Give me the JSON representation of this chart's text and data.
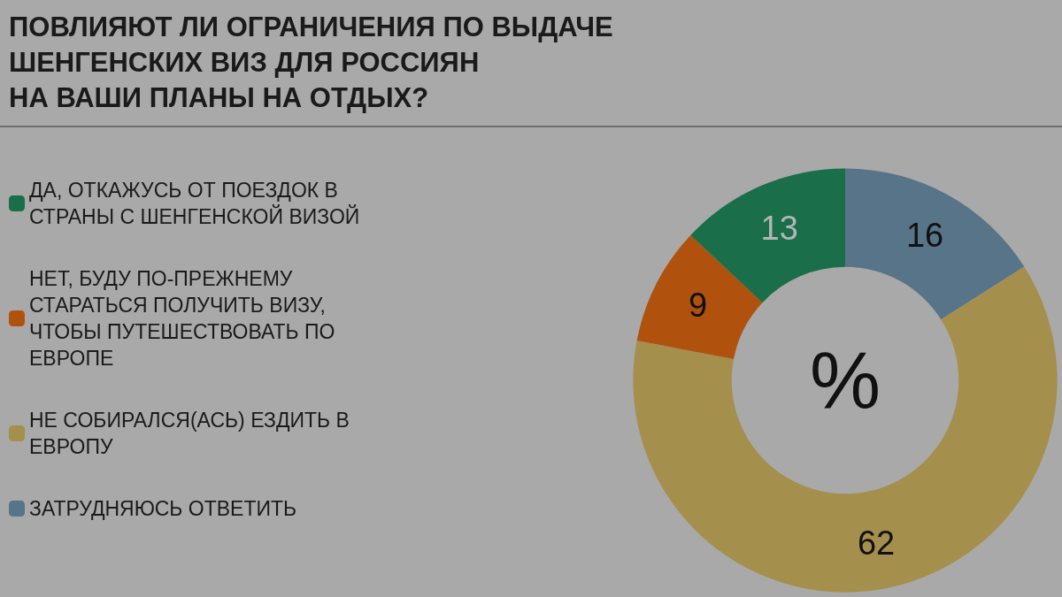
{
  "chart_data": {
    "type": "donut",
    "title": "ПОВЛИЯЮТ ЛИ ОГРАНИЧЕНИЯ ПО ВЫДАЧЕ\nШЕНГЕНСКИХ ВИЗ ДЛЯ РОССИЯН\nНА ВАШИ ПЛАНЫ НА ОТДЫХ?",
    "categories": [
      "ЗАТРУДНЯЮСЬ ОТВЕТИТЬ",
      "НЕ СОБИРАЛСЯ(АСЬ) ЕЗДИТЬ В ЕВРОПУ",
      "НЕТ, БУДУ ПО-ПРЕЖНЕМУ СТАРАТЬСЯ ПОЛУЧИТЬ ВИЗУ, ЧТОБЫ ПУТЕШЕСТВОВАТЬ ПО ЕВРОПЕ",
      "ДА, ОТКАЖУСЬ ОТ ПОЕЗДОК В СТРАНЫ С ШЕНГЕНСКОЙ ВИЗОЙ"
    ],
    "values": [
      16,
      62,
      9,
      13
    ],
    "colors": [
      "#587489",
      "#a58f4c",
      "#b0520e",
      "#1a6e4a"
    ],
    "data_labels": true,
    "legend": "left",
    "annotations": [
      "%"
    ]
  }
}
